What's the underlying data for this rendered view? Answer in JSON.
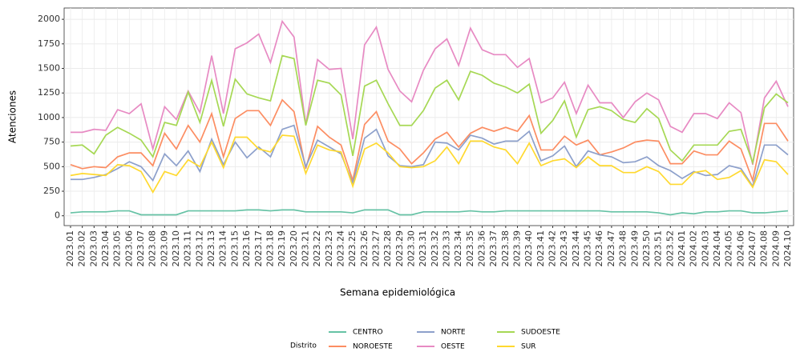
{
  "chart_data": {
    "type": "line",
    "x_label": "Semana epidemiológica",
    "y_label": "Atenciones",
    "legend_title": "Distrito",
    "categories": [
      "2023.01",
      "2023.02",
      "2023.03",
      "2023.04",
      "2023.05",
      "2023.06",
      "2023.07",
      "2023.08",
      "2023.09",
      "2023.10",
      "2023.11",
      "2023.12",
      "2023.13",
      "2023.14",
      "2023.15",
      "2023.16",
      "2023.17",
      "2023.18",
      "2023.19",
      "2023.20",
      "2023.21",
      "2023.22",
      "2023.23",
      "2023.24",
      "2023.25",
      "2023.26",
      "2023.27",
      "2023.28",
      "2023.29",
      "2023.30",
      "2023.31",
      "2023.32",
      "2023.33",
      "2023.34",
      "2023.35",
      "2023.36",
      "2023.37",
      "2023.38",
      "2023.39",
      "2023.40",
      "2023.41",
      "2023.42",
      "2023.43",
      "2023.44",
      "2023.45",
      "2023.46",
      "2023.47",
      "2023.48",
      "2023.49",
      "2023.50",
      "2023.51",
      "2023.52",
      "2024.01",
      "2024.02",
      "2024.03",
      "2024.04",
      "2024.05",
      "2024.06",
      "2024.07",
      "2024.08",
      "2024.09",
      "2024.10"
    ],
    "series": [
      {
        "name": "CENTRO",
        "color": "#66c2a5",
        "values": [
          30,
          40,
          40,
          40,
          50,
          50,
          10,
          10,
          10,
          10,
          50,
          50,
          50,
          50,
          50,
          60,
          60,
          50,
          60,
          60,
          40,
          40,
          40,
          40,
          30,
          60,
          60,
          60,
          10,
          10,
          40,
          40,
          40,
          40,
          50,
          40,
          40,
          50,
          50,
          50,
          50,
          50,
          50,
          50,
          50,
          50,
          40,
          40,
          40,
          40,
          30,
          10,
          30,
          20,
          40,
          40,
          50,
          50,
          30,
          30,
          40,
          50
        ]
      },
      {
        "name": "NOROESTE",
        "color": "#fc8d62",
        "values": [
          520,
          480,
          500,
          490,
          600,
          640,
          640,
          510,
          840,
          680,
          920,
          750,
          1040,
          600,
          990,
          1070,
          1070,
          920,
          1180,
          1060,
          480,
          910,
          800,
          720,
          360,
          930,
          1060,
          760,
          680,
          530,
          640,
          780,
          850,
          700,
          840,
          900,
          860,
          900,
          860,
          1020,
          670,
          670,
          810,
          720,
          770,
          620,
          650,
          690,
          750,
          770,
          760,
          530,
          530,
          660,
          620,
          620,
          760,
          680,
          360,
          940,
          940,
          760
        ]
      },
      {
        "name": "NORTE",
        "color": "#8da0cb",
        "values": [
          370,
          370,
          390,
          420,
          480,
          550,
          500,
          360,
          630,
          510,
          660,
          450,
          780,
          520,
          750,
          590,
          700,
          600,
          880,
          920,
          500,
          770,
          700,
          630,
          330,
          790,
          880,
          610,
          510,
          500,
          520,
          750,
          740,
          670,
          820,
          790,
          730,
          760,
          760,
          860,
          560,
          610,
          710,
          500,
          660,
          620,
          600,
          540,
          550,
          600,
          510,
          460,
          380,
          450,
          410,
          420,
          510,
          480,
          300,
          720,
          720,
          620
        ]
      },
      {
        "name": "OESTE",
        "color": "#e78ac3",
        "values": [
          850,
          850,
          880,
          870,
          1080,
          1040,
          1140,
          680,
          1110,
          980,
          1270,
          1050,
          1630,
          1040,
          1700,
          1760,
          1850,
          1560,
          1980,
          1820,
          930,
          1590,
          1490,
          1500,
          780,
          1740,
          1920,
          1490,
          1270,
          1160,
          1480,
          1700,
          1800,
          1530,
          1910,
          1690,
          1640,
          1640,
          1510,
          1600,
          1150,
          1200,
          1360,
          1040,
          1330,
          1150,
          1150,
          1000,
          1160,
          1250,
          1180,
          910,
          850,
          1040,
          1040,
          990,
          1150,
          1050,
          520,
          1200,
          1370,
          1110
        ]
      },
      {
        "name": "SUDOESTE",
        "color": "#a6d854",
        "values": [
          710,
          720,
          630,
          820,
          900,
          840,
          770,
          600,
          950,
          920,
          1260,
          950,
          1380,
          910,
          1390,
          1240,
          1200,
          1170,
          1630,
          1600,
          920,
          1380,
          1350,
          1230,
          610,
          1320,
          1380,
          1140,
          920,
          920,
          1070,
          1300,
          1380,
          1180,
          1470,
          1430,
          1350,
          1310,
          1250,
          1340,
          840,
          970,
          1170,
          800,
          1080,
          1110,
          1070,
          980,
          950,
          1090,
          990,
          670,
          560,
          720,
          720,
          720,
          860,
          880,
          540,
          1100,
          1240,
          1150
        ]
      },
      {
        "name": "SUR",
        "color": "#ffd92f",
        "values": [
          410,
          430,
          420,
          410,
          520,
          510,
          450,
          240,
          450,
          410,
          570,
          500,
          750,
          490,
          800,
          800,
          680,
          650,
          820,
          810,
          430,
          720,
          670,
          650,
          300,
          680,
          740,
          640,
          500,
          490,
          500,
          560,
          700,
          530,
          760,
          760,
          700,
          670,
          530,
          740,
          510,
          560,
          580,
          490,
          600,
          510,
          510,
          440,
          440,
          500,
          450,
          320,
          320,
          440,
          460,
          370,
          390,
          460,
          290,
          570,
          550,
          420
        ]
      }
    ],
    "ylim": [
      -100,
      2115
    ],
    "yticks": [
      0,
      250,
      500,
      750,
      1000,
      1250,
      1500,
      1750,
      2000
    ],
    "grid": true
  }
}
